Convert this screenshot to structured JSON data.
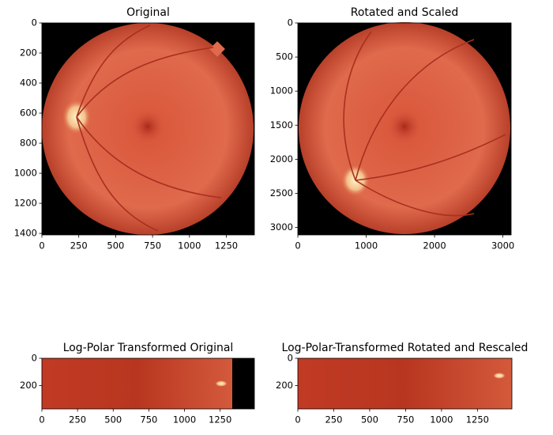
{
  "chart_data": [
    {
      "type": "image",
      "title": "Original",
      "xlim": [
        0,
        1440
      ],
      "ylim": [
        1410,
        0
      ],
      "xticks": [
        0,
        250,
        500,
        750,
        1000,
        1250
      ],
      "yticks": [
        0,
        200,
        400,
        600,
        800,
        1000,
        1200,
        1400
      ]
    },
    {
      "type": "image",
      "title": "Rotated and Scaled",
      "xlim": [
        0,
        3120
      ],
      "ylim": [
        3110,
        0
      ],
      "xticks": [
        0,
        1000,
        2000,
        3000
      ],
      "yticks": [
        0,
        500,
        1000,
        1500,
        2000,
        2500,
        3000
      ]
    },
    {
      "type": "image",
      "title": "Log-Polar Transformed Original",
      "xlim": [
        0,
        1490
      ],
      "ylim": [
        370,
        0
      ],
      "xticks": [
        0,
        250,
        500,
        750,
        1000,
        1250
      ],
      "yticks": [
        0,
        200
      ]
    },
    {
      "type": "image",
      "title": "Log-Polar-Transformed Rotated and Rescaled",
      "xlim": [
        0,
        1490
      ],
      "ylim": [
        370,
        0
      ],
      "xticks": [
        0,
        250,
        500,
        750,
        1000,
        1250
      ],
      "yticks": [
        0,
        200
      ]
    }
  ]
}
